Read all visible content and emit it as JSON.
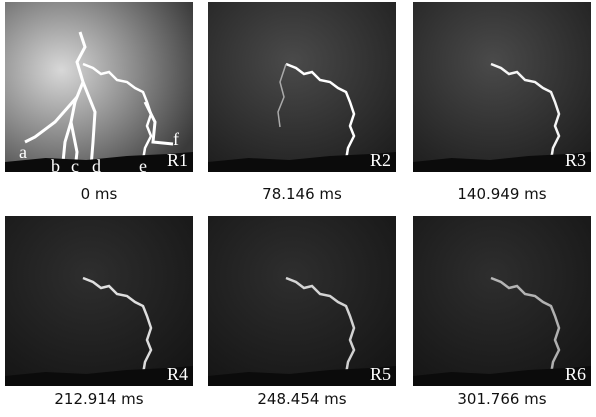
{
  "panels": [
    {
      "label": "R1",
      "time": "0 ms"
    },
    {
      "label": "R2",
      "time": "78.146 ms"
    },
    {
      "label": "R3",
      "time": "140.949 ms"
    },
    {
      "label": "R4",
      "time": "212.914 ms"
    },
    {
      "label": "R5",
      "time": "248.454 ms"
    },
    {
      "label": "R6",
      "time": "301.766 ms"
    }
  ],
  "channel_labels": [
    "a",
    "b",
    "c",
    "d",
    "e",
    "f"
  ]
}
